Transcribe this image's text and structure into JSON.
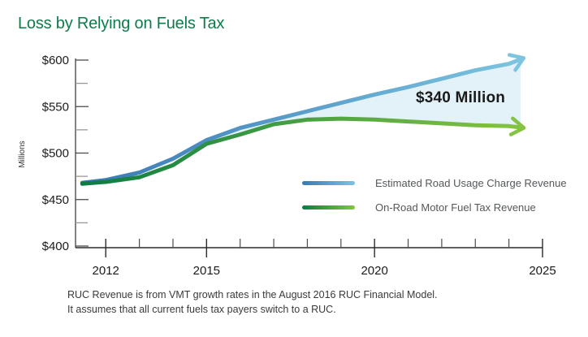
{
  "title": "Loss by Relying on Fuels Tax",
  "annotation": "$340 Million",
  "footnote": {
    "line1": "RUC Revenue is from VMT growth rates in the August 2016 RUC Financial Model.",
    "line2": "It assumes that all current fuels tax payers switch to a RUC."
  },
  "colors": {
    "title_green": "#0f7b4c",
    "axis_left": "#4d4d4d",
    "axis_bottom": "#2b2b2b",
    "tick_minor": "#999999",
    "tick_label": "#1b1b1b",
    "fill_area": "#e3f1f8",
    "annotation_text": "#1a1a1a"
  },
  "legend": {
    "items": [
      {
        "label": "Estimated Road Usage Charge Revenue"
      },
      {
        "label": "On-Road Motor Fuel Tax Revenue"
      }
    ]
  },
  "chart_data": {
    "type": "line",
    "title": "Loss by Relying on Fuels Tax",
    "xlabel": "",
    "ylabel": "Millions",
    "xlim": [
      2011.1,
      2025
    ],
    "ylim": [
      400,
      600
    ],
    "grid": false,
    "legend_position": "inside right, below lines",
    "y_ticks": {
      "major": [
        {
          "label": "$600",
          "value": 600
        },
        {
          "label": "$550",
          "value": 550
        },
        {
          "label": "$500",
          "value": 500
        },
        {
          "label": "$450",
          "value": 450
        },
        {
          "label": "$400",
          "value": 400
        }
      ],
      "minor": [
        575,
        525,
        475,
        425
      ]
    },
    "x_ticks": {
      "major": [
        {
          "label": "2012",
          "value": 2012
        },
        {
          "label": "2015",
          "value": 2015
        },
        {
          "label": "2020",
          "value": 2020
        },
        {
          "label": "2025",
          "value": 2025
        }
      ],
      "minor": [
        2013,
        2014,
        2016,
        2017,
        2018,
        2019,
        2021,
        2022,
        2023,
        2024
      ]
    },
    "series": [
      {
        "name": "Estimated Road Usage Charge Revenue",
        "color_start": "#3a79b5",
        "color_end": "#7cc4e0",
        "x": [
          2011.3,
          2012,
          2013,
          2014,
          2015,
          2016,
          2017,
          2018,
          2019,
          2020,
          2021,
          2022,
          2023,
          2024,
          2024.35
        ],
        "y": [
          468,
          471,
          479,
          494,
          514,
          527,
          536,
          545,
          554,
          563,
          571,
          580,
          589,
          596,
          601
        ]
      },
      {
        "name": "On-Road Motor Fuel Tax Revenue",
        "color_start": "#0c7c42",
        "color_end": "#85c342",
        "x": [
          2011.3,
          2012,
          2013,
          2014,
          2015,
          2016,
          2017,
          2018,
          2019,
          2020,
          2021,
          2022,
          2023,
          2024,
          2024.35
        ],
        "y": [
          467,
          469,
          474,
          487,
          510,
          520,
          531,
          536,
          537,
          536,
          534,
          532,
          530,
          529,
          527.5
        ]
      }
    ],
    "fill_between": {
      "from_x": 2015,
      "color": "#e3f1f8",
      "annotation": "$340 Million"
    }
  }
}
